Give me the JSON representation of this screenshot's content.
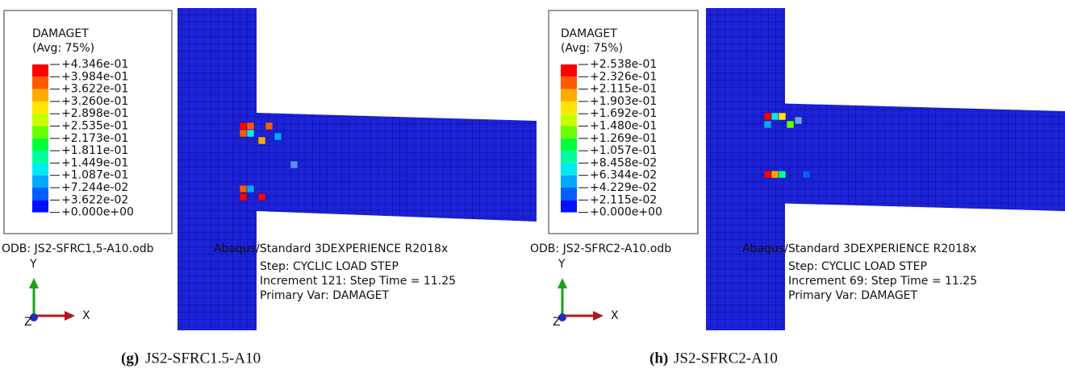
{
  "panels": [
    {
      "legend_title": "DAMAGET",
      "legend_avg": "(Avg: 75%)",
      "legend_labels": [
        "+4.346e-01",
        "+3.984e-01",
        "+3.622e-01",
        "+3.260e-01",
        "+2.898e-01",
        "+2.535e-01",
        "+2.173e-01",
        "+1.811e-01",
        "+1.449e-01",
        "+1.087e-01",
        "+7.244e-02",
        "+3.622e-02",
        "+0.000e+00"
      ],
      "odb": "ODB: JS2-SFRC1,5-A10.odb",
      "solver": "Abaqus/Standard 3DEXPERIENCE R2018x",
      "step": "Step: CYCLIC LOAD STEP",
      "increment": "Increment    121: Step Time =    11.25",
      "primary_var": "Primary Var: DAMAGET",
      "axis_y": "Y",
      "axis_x": "X",
      "axis_z": "Z",
      "caption_letter": "(g)",
      "caption_text": "JS2-SFRC1.5-A10"
    },
    {
      "legend_title": "DAMAGET",
      "legend_avg": "(Avg: 75%)",
      "legend_labels": [
        "+2.538e-01",
        "+2.326e-01",
        "+2.115e-01",
        "+1.903e-01",
        "+1.692e-01",
        "+1.480e-01",
        "+1.269e-01",
        "+1.057e-01",
        "+8.458e-02",
        "+6.344e-02",
        "+4.229e-02",
        "+2.115e-02",
        "+0.000e+00"
      ],
      "odb": "ODB: JS2-SFRC2-A10.odb",
      "solver": "Abaqus/Standard 3DEXPERIENCE R2018x",
      "step": "Step: CYCLIC LOAD STEP",
      "increment": "Increment     69: Step Time =    11.25",
      "primary_var": "Primary Var: DAMAGET",
      "axis_y": "Y",
      "axis_x": "X",
      "axis_z": "Z",
      "caption_letter": "(h)",
      "caption_text": "JS2-SFRC2-A10"
    }
  ]
}
